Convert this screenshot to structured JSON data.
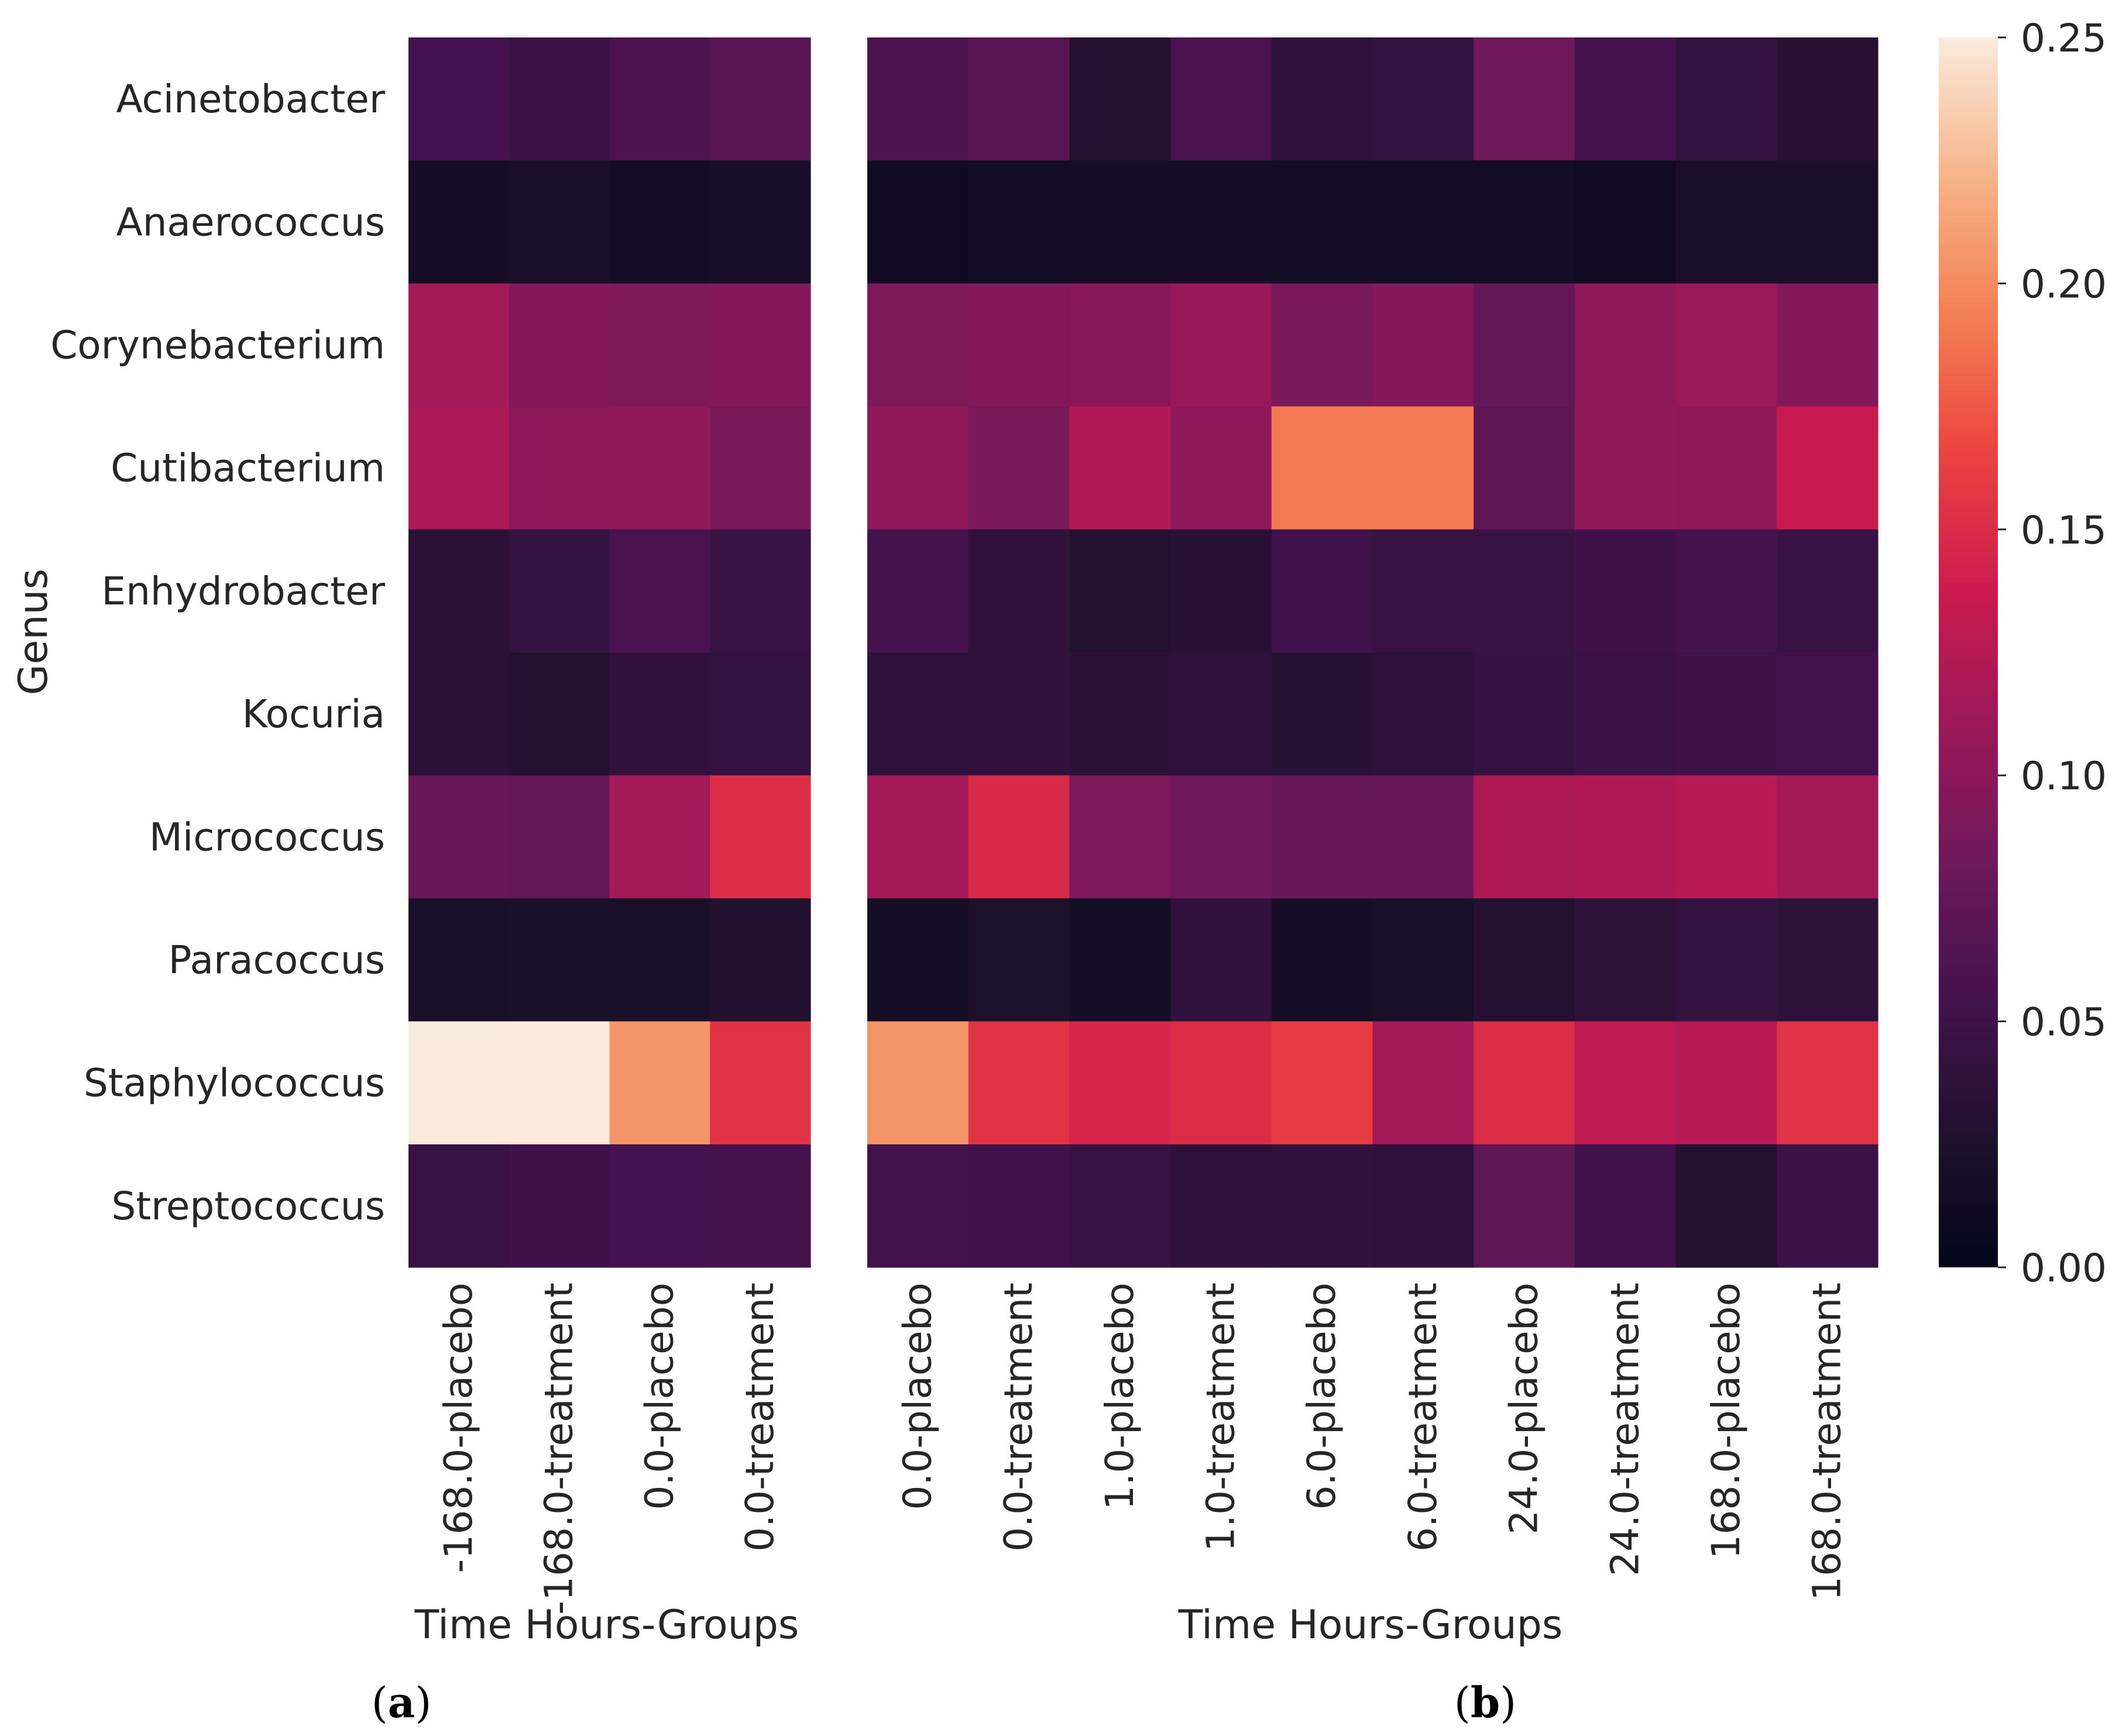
{
  "figure": {
    "colorbar": {
      "vmin": 0.0,
      "vmax": 0.25,
      "ticks": [
        "0.00",
        "0.05",
        "0.10",
        "0.15",
        "0.20",
        "0.25"
      ],
      "tick_values": [
        0.0,
        0.05,
        0.1,
        0.15,
        0.2,
        0.25
      ]
    },
    "y_axis_label": "Genus",
    "panel_labels": [
      {
        "open": "(",
        "letter": "a",
        "close": ")"
      },
      {
        "open": "(",
        "letter": "b",
        "close": ")"
      }
    ]
  },
  "chart_data": [
    {
      "type": "heatmap",
      "panel": "a",
      "title": "",
      "xlabel": "Time Hours-Groups",
      "ylabel": "Genus",
      "rows": [
        "Acinetobacter",
        "Anaerococcus",
        "Corynebacterium",
        "Cutibacterium",
        "Enhydrobacter",
        "Kocuria",
        "Micrococcus",
        "Paracoccus",
        "Staphylococcus",
        "Streptococcus"
      ],
      "columns": [
        "-168.0-placebo",
        "-168.0-treatment",
        "0.0-placebo",
        "0.0-treatment"
      ],
      "values": [
        [
          0.055,
          0.048,
          0.06,
          0.068
        ],
        [
          0.018,
          0.02,
          0.017,
          0.019
        ],
        [
          0.115,
          0.095,
          0.093,
          0.095
        ],
        [
          0.118,
          0.1,
          0.102,
          0.088
        ],
        [
          0.035,
          0.042,
          0.058,
          0.045
        ],
        [
          0.035,
          0.03,
          0.04,
          0.042
        ],
        [
          0.078,
          0.075,
          0.115,
          0.15
        ],
        [
          0.02,
          0.022,
          0.02,
          0.027
        ],
        [
          0.25,
          0.25,
          0.205,
          0.155
        ],
        [
          0.045,
          0.05,
          0.055,
          0.056
        ]
      ]
    },
    {
      "type": "heatmap",
      "panel": "b",
      "title": "",
      "xlabel": "Time Hours-Groups",
      "ylabel": "",
      "rows": [
        "Acinetobacter",
        "Anaerococcus",
        "Corynebacterium",
        "Cutibacterium",
        "Enhydrobacter",
        "Kocuria",
        "Micrococcus",
        "Paracoccus",
        "Staphylococcus",
        "Streptococcus"
      ],
      "columns": [
        "0.0-placebo",
        "0.0-treatment",
        "1.0-placebo",
        "1.0-treatment",
        "6.0-placebo",
        "6.0-treatment",
        "24.0-placebo",
        "24.0-treatment",
        "168.0-placebo",
        "168.0-treatment"
      ],
      "values": [
        [
          0.06,
          0.068,
          0.03,
          0.058,
          0.038,
          0.042,
          0.082,
          0.056,
          0.042,
          0.033
        ],
        [
          0.012,
          0.016,
          0.018,
          0.018,
          0.016,
          0.016,
          0.014,
          0.012,
          0.02,
          0.02
        ],
        [
          0.092,
          0.095,
          0.098,
          0.108,
          0.088,
          0.095,
          0.075,
          0.102,
          0.11,
          0.094
        ],
        [
          0.102,
          0.088,
          0.122,
          0.102,
          0.19,
          0.19,
          0.072,
          0.104,
          0.103,
          0.135
        ],
        [
          0.056,
          0.04,
          0.028,
          0.034,
          0.052,
          0.046,
          0.046,
          0.05,
          0.056,
          0.046
        ],
        [
          0.038,
          0.04,
          0.035,
          0.037,
          0.032,
          0.037,
          0.043,
          0.048,
          0.05,
          0.053
        ],
        [
          0.115,
          0.148,
          0.09,
          0.082,
          0.078,
          0.078,
          0.12,
          0.122,
          0.125,
          0.115
        ],
        [
          0.018,
          0.025,
          0.016,
          0.04,
          0.018,
          0.02,
          0.03,
          0.036,
          0.042,
          0.036
        ],
        [
          0.205,
          0.155,
          0.145,
          0.15,
          0.16,
          0.115,
          0.15,
          0.13,
          0.125,
          0.155
        ],
        [
          0.053,
          0.052,
          0.045,
          0.038,
          0.04,
          0.038,
          0.073,
          0.052,
          0.03,
          0.048
        ]
      ]
    }
  ]
}
